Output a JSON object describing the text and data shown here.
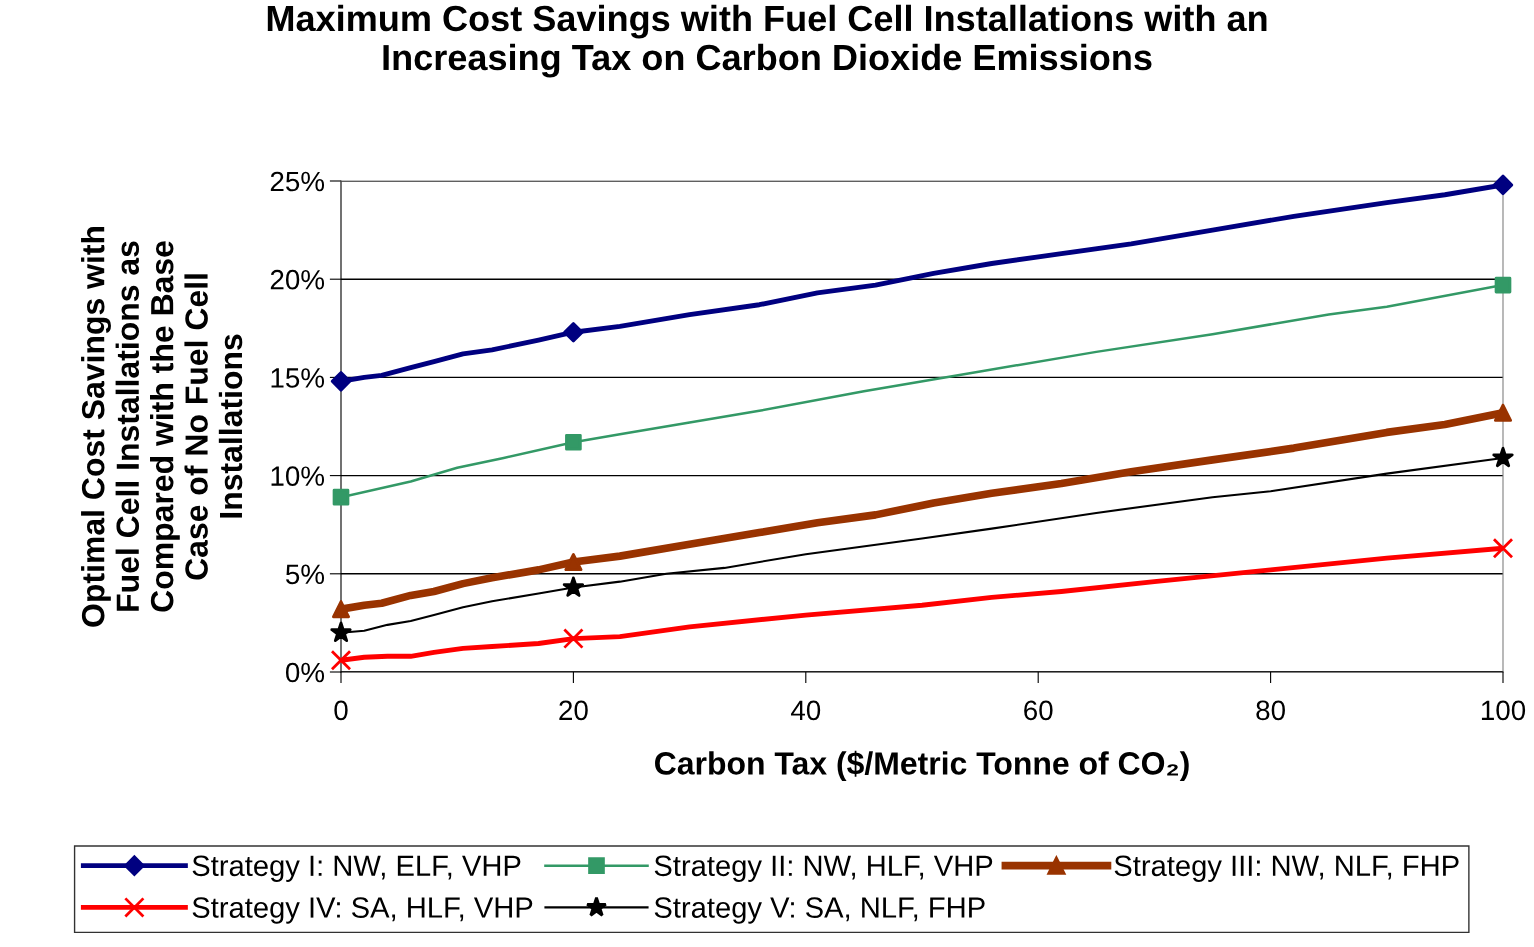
{
  "chart_data": {
    "type": "line",
    "title": "Maximum Cost Savings with Fuel Cell Installations with an\nIncreasing Tax on Carbon Dioxide Emissions",
    "xlabel": "Carbon Tax ($/Metric Tonne of CO₂)",
    "ylabel": "Optimal Cost Savings with\nFuel Cell Installations as\nCompared with the Base\nCase of No Fuel Cell\nInstallations",
    "xlim": [
      0,
      100
    ],
    "xticks": [
      0,
      20,
      40,
      60,
      80,
      100
    ],
    "ylim": [
      0,
      25
    ],
    "yticks": [
      {
        "value": 0,
        "label": "0%"
      },
      {
        "value": 5,
        "label": "5%"
      },
      {
        "value": 10,
        "label": "10%"
      },
      {
        "value": 15,
        "label": "15%"
      },
      {
        "value": 20,
        "label": "20%"
      },
      {
        "value": 25,
        "label": "25%"
      }
    ],
    "grid": "y",
    "legend": "bottom",
    "series": [
      {
        "name": "Strategy I: NW, ELF, VHP",
        "color": "#000080",
        "marker": "none",
        "x": [
          0,
          2,
          3.5,
          6,
          8,
          10.5,
          13,
          17,
          20,
          24,
          30,
          36,
          41,
          46,
          51,
          56,
          62,
          68,
          75,
          82,
          90,
          95,
          100
        ],
        "values": [
          14.8,
          15.0,
          15.1,
          15.5,
          15.8,
          16.2,
          16.4,
          16.9,
          17.3,
          17.6,
          18.2,
          18.7,
          19.3,
          19.7,
          20.3,
          20.8,
          21.3,
          21.8,
          22.5,
          23.2,
          23.9,
          24.3,
          24.8
        ]
      },
      {
        "name": "Strategy II: NW, HLF, VHP",
        "color": "#339966",
        "marker": "none",
        "x": [
          0,
          6,
          10,
          14,
          20,
          24,
          30,
          36,
          45,
          55,
          65,
          75,
          85,
          90,
          100
        ],
        "values": [
          8.9,
          9.7,
          10.4,
          10.9,
          11.7,
          12.1,
          12.7,
          13.3,
          14.3,
          15.3,
          16.3,
          17.2,
          18.2,
          18.6,
          19.7
        ]
      },
      {
        "name": "Strategy III: NW, NLF, FHP",
        "color": "#993300",
        "marker": "none",
        "x": [
          0,
          2,
          3.5,
          6,
          8,
          10.5,
          13,
          17,
          20,
          24,
          30,
          36,
          41,
          46,
          51,
          56,
          62,
          68,
          75,
          82,
          90,
          95,
          100
        ],
        "values": [
          3.2,
          3.4,
          3.5,
          3.9,
          4.1,
          4.5,
          4.8,
          5.2,
          5.6,
          5.9,
          6.5,
          7.1,
          7.6,
          8.0,
          8.6,
          9.1,
          9.6,
          10.2,
          10.8,
          11.4,
          12.2,
          12.6,
          13.2
        ]
      },
      {
        "name": "Strategy IV: SA, HLF, VHP",
        "color": "#ff0000",
        "marker": "none",
        "x": [
          0,
          2,
          4,
          6,
          8,
          10.5,
          13,
          17,
          20,
          24,
          30,
          40,
          50,
          56,
          62,
          70,
          80,
          90,
          100
        ],
        "values": [
          0.6,
          0.75,
          0.8,
          0.8,
          1.0,
          1.2,
          1.3,
          1.45,
          1.7,
          1.8,
          2.3,
          2.9,
          3.4,
          3.8,
          4.1,
          4.6,
          5.2,
          5.8,
          6.3
        ]
      },
      {
        "name": "Strategy V: SA, NLF, FHP",
        "color": "#000000",
        "marker": "none",
        "x": [
          0,
          2,
          4,
          6,
          8,
          10.5,
          13,
          17,
          20,
          24,
          28,
          33,
          40,
          50,
          56,
          65,
          75,
          80,
          90,
          100
        ],
        "values": [
          2.0,
          2.1,
          2.4,
          2.6,
          2.9,
          3.3,
          3.6,
          4.0,
          4.3,
          4.6,
          5.0,
          5.3,
          6.0,
          6.8,
          7.3,
          8.1,
          8.9,
          9.2,
          10.1,
          10.9
        ]
      },
      {
        "type": "scatter",
        "color": "#000080",
        "marker": "diamond",
        "x": [
          0,
          20,
          100
        ],
        "values": [
          14.8,
          17.3,
          24.8
        ]
      },
      {
        "type": "scatter",
        "color": "#339966",
        "marker": "square",
        "x": [
          0,
          20,
          100
        ],
        "values": [
          8.9,
          11.7,
          19.7
        ]
      },
      {
        "type": "scatter",
        "color": "#993300",
        "marker": "triangle",
        "x": [
          0,
          20,
          100
        ],
        "values": [
          3.2,
          5.6,
          13.2
        ]
      },
      {
        "type": "scatter",
        "color": "#ff0000",
        "marker": "cross",
        "x": [
          0,
          20,
          100
        ],
        "values": [
          0.6,
          1.7,
          6.3
        ]
      },
      {
        "type": "scatter",
        "color": "#000000",
        "marker": "star",
        "x": [
          0,
          20,
          100
        ],
        "values": [
          2.0,
          4.3,
          10.9
        ]
      }
    ]
  }
}
